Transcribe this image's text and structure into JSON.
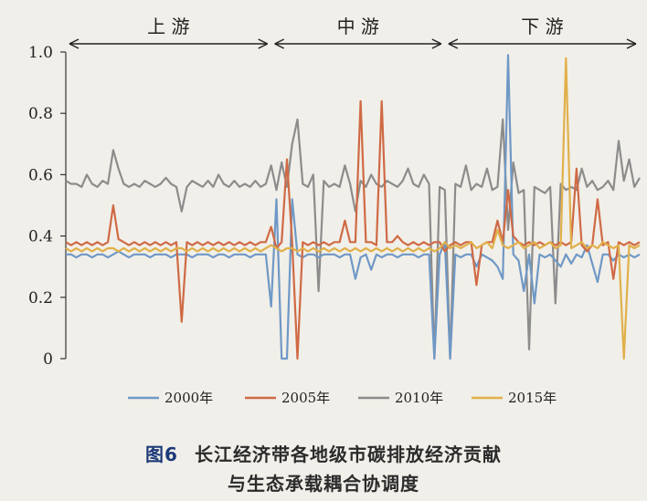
{
  "chart_data": {
    "type": "line",
    "title": "",
    "xlabel": "",
    "ylabel": "",
    "ylim": [
      0,
      1.0
    ],
    "yticks": [
      "1.0",
      "0.8",
      "0.6",
      "0.4",
      "0.2",
      "0"
    ],
    "grid": false,
    "legend_position": "bottom",
    "regions": [
      {
        "label": "上 游",
        "start": 0,
        "end": 39
      },
      {
        "label": "中 游",
        "start": 39,
        "end": 72
      },
      {
        "label": "下 游",
        "start": 72,
        "end": 110
      }
    ],
    "x_count": 110,
    "series": [
      {
        "name": "2000年",
        "color": "#6f98c6",
        "values": [
          0.34,
          0.34,
          0.33,
          0.34,
          0.34,
          0.33,
          0.34,
          0.34,
          0.33,
          0.34,
          0.35,
          0.34,
          0.33,
          0.34,
          0.34,
          0.34,
          0.33,
          0.34,
          0.34,
          0.34,
          0.33,
          0.34,
          0.34,
          0.34,
          0.33,
          0.34,
          0.34,
          0.34,
          0.33,
          0.34,
          0.34,
          0.33,
          0.34,
          0.34,
          0.34,
          0.33,
          0.34,
          0.34,
          0.34,
          0.17,
          0.52,
          0.0,
          0.0,
          0.52,
          0.34,
          0.33,
          0.34,
          0.34,
          0.33,
          0.34,
          0.34,
          0.34,
          0.33,
          0.34,
          0.34,
          0.26,
          0.33,
          0.34,
          0.29,
          0.34,
          0.33,
          0.34,
          0.34,
          0.33,
          0.34,
          0.34,
          0.34,
          0.33,
          0.34,
          0.34,
          0.0,
          0.34,
          0.38,
          0.0,
          0.34,
          0.33,
          0.34,
          0.34,
          0.3,
          0.34,
          0.33,
          0.32,
          0.3,
          0.26,
          0.99,
          0.34,
          0.32,
          0.22,
          0.34,
          0.18,
          0.34,
          0.33,
          0.34,
          0.32,
          0.3,
          0.34,
          0.31,
          0.34,
          0.33,
          0.37,
          0.31,
          0.25,
          0.34,
          0.34,
          0.32,
          0.34,
          0.33,
          0.34,
          0.33,
          0.34
        ]
      },
      {
        "name": "2005年",
        "color": "#cf6a45",
        "values": [
          0.38,
          0.37,
          0.38,
          0.37,
          0.38,
          0.37,
          0.38,
          0.37,
          0.38,
          0.5,
          0.39,
          0.38,
          0.37,
          0.38,
          0.37,
          0.38,
          0.37,
          0.38,
          0.37,
          0.38,
          0.37,
          0.38,
          0.12,
          0.38,
          0.37,
          0.38,
          0.37,
          0.38,
          0.37,
          0.38,
          0.37,
          0.38,
          0.37,
          0.38,
          0.37,
          0.38,
          0.37,
          0.38,
          0.38,
          0.43,
          0.36,
          0.38,
          0.65,
          0.38,
          0.0,
          0.38,
          0.37,
          0.38,
          0.37,
          0.38,
          0.37,
          0.38,
          0.38,
          0.45,
          0.38,
          0.38,
          0.84,
          0.38,
          0.38,
          0.37,
          0.84,
          0.38,
          0.38,
          0.4,
          0.38,
          0.37,
          0.38,
          0.37,
          0.38,
          0.37,
          0.38,
          0.38,
          0.35,
          0.37,
          0.38,
          0.37,
          0.38,
          0.38,
          0.24,
          0.37,
          0.38,
          0.38,
          0.45,
          0.38,
          0.55,
          0.4,
          0.38,
          0.37,
          0.38,
          0.37,
          0.38,
          0.37,
          0.38,
          0.37,
          0.38,
          0.37,
          0.38,
          0.62,
          0.37,
          0.35,
          0.37,
          0.52,
          0.37,
          0.38,
          0.26,
          0.38,
          0.37,
          0.38,
          0.37,
          0.38
        ]
      },
      {
        "name": "2010年",
        "color": "#8c8c8c",
        "values": [
          0.58,
          0.57,
          0.57,
          0.56,
          0.6,
          0.57,
          0.56,
          0.58,
          0.57,
          0.68,
          0.62,
          0.57,
          0.56,
          0.57,
          0.56,
          0.58,
          0.57,
          0.56,
          0.57,
          0.59,
          0.57,
          0.56,
          0.48,
          0.56,
          0.58,
          0.57,
          0.56,
          0.58,
          0.56,
          0.6,
          0.57,
          0.56,
          0.58,
          0.56,
          0.57,
          0.56,
          0.58,
          0.56,
          0.57,
          0.63,
          0.55,
          0.64,
          0.56,
          0.7,
          0.78,
          0.57,
          0.56,
          0.6,
          0.22,
          0.58,
          0.56,
          0.57,
          0.56,
          0.63,
          0.57,
          0.48,
          0.58,
          0.56,
          0.6,
          0.57,
          0.56,
          0.58,
          0.57,
          0.56,
          0.58,
          0.62,
          0.57,
          0.56,
          0.6,
          0.57,
          0.0,
          0.56,
          0.55,
          0.0,
          0.57,
          0.56,
          0.63,
          0.55,
          0.57,
          0.56,
          0.62,
          0.55,
          0.56,
          0.78,
          0.42,
          0.64,
          0.54,
          0.55,
          0.03,
          0.56,
          0.55,
          0.54,
          0.56,
          0.18,
          0.57,
          0.55,
          0.56,
          0.55,
          0.62,
          0.56,
          0.58,
          0.55,
          0.56,
          0.58,
          0.55,
          0.71,
          0.58,
          0.65,
          0.56,
          0.59
        ]
      },
      {
        "name": "2015年",
        "color": "#e1b04a",
        "values": [
          0.36,
          0.35,
          0.36,
          0.35,
          0.36,
          0.35,
          0.36,
          0.35,
          0.36,
          0.36,
          0.35,
          0.36,
          0.35,
          0.36,
          0.35,
          0.36,
          0.35,
          0.36,
          0.35,
          0.36,
          0.35,
          0.36,
          0.36,
          0.35,
          0.36,
          0.35,
          0.36,
          0.35,
          0.36,
          0.35,
          0.36,
          0.35,
          0.36,
          0.35,
          0.36,
          0.35,
          0.36,
          0.35,
          0.36,
          0.37,
          0.36,
          0.35,
          0.36,
          0.36,
          0.35,
          0.36,
          0.35,
          0.36,
          0.35,
          0.36,
          0.35,
          0.36,
          0.35,
          0.36,
          0.35,
          0.36,
          0.35,
          0.36,
          0.35,
          0.36,
          0.35,
          0.36,
          0.35,
          0.36,
          0.35,
          0.36,
          0.35,
          0.36,
          0.35,
          0.36,
          0.35,
          0.36,
          0.38,
          0.36,
          0.37,
          0.36,
          0.37,
          0.38,
          0.36,
          0.37,
          0.38,
          0.36,
          0.42,
          0.37,
          0.36,
          0.37,
          0.38,
          0.36,
          0.37,
          0.38,
          0.36,
          0.37,
          0.38,
          0.36,
          0.37,
          0.98,
          0.36,
          0.37,
          0.38,
          0.36,
          0.37,
          0.36,
          0.38,
          0.37,
          0.36,
          0.37,
          0.0,
          0.37,
          0.36,
          0.37
        ]
      }
    ]
  },
  "caption": {
    "figure_number": "图6",
    "line1": "长江经济带各地级市碳排放经济贡献",
    "line2": "与生态承载耦合协调度"
  }
}
